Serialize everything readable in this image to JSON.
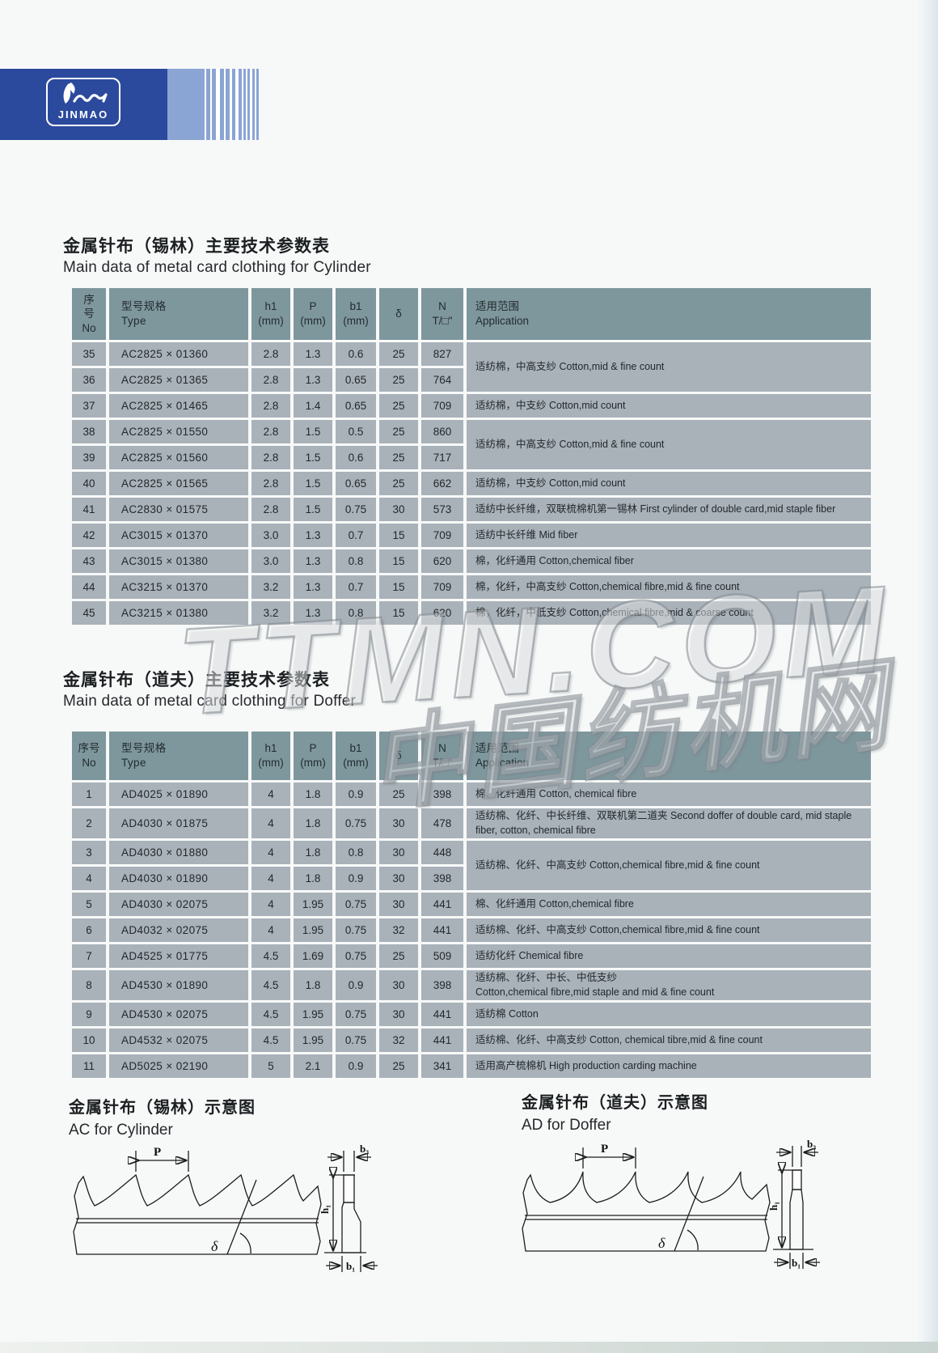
{
  "colors": {
    "banner-dark": "#2b4a9d",
    "banner-light": "#8aa4d4",
    "table-header": "#7e979d",
    "table-cell": "#a9b2b9",
    "page-bg": "#f7f9f8",
    "ink": "#23282c"
  },
  "logo": {
    "text": "JINMAO"
  },
  "watermark": {
    "line1": "TTMN.COM",
    "line2": "中国纺机网"
  },
  "cylinder_section": {
    "title_zh": "金属针布（锡林）主要技术参数表",
    "title_en": "Main data of metal card clothing for Cylinder"
  },
  "doffer_section": {
    "title_zh": "金属针布（道夫）主要技术参数表",
    "title_en": "Main data of metal card clothing for Doffer"
  },
  "cylinder_table": {
    "col_classes": [
      "no",
      "type",
      "h1",
      "p",
      "b1",
      "delta",
      "n",
      "app"
    ],
    "headers": [
      "序\n号\nNo",
      "型号规格\nType",
      "h1\n(mm)",
      "P\n(mm)",
      "b1\n(mm)",
      "δ",
      "N\nT/□\"",
      "适用范围\nApplication"
    ],
    "rows": [
      [
        "35",
        "AC2825 × 01360",
        "2.8",
        "1.3",
        "0.6",
        "25",
        "827",
        {
          "t": "适纺棉，中高支纱 Cotton,mid & fine count",
          "span": 2
        }
      ],
      [
        "36",
        "AC2825 × 01365",
        "2.8",
        "1.3",
        "0.65",
        "25",
        "764"
      ],
      [
        "37",
        "AC2825 × 01465",
        "2.8",
        "1.4",
        "0.65",
        "25",
        "709",
        {
          "t": "适纺棉，中支纱 Cotton,mid count"
        }
      ],
      [
        "38",
        "AC2825 × 01550",
        "2.8",
        "1.5",
        "0.5",
        "25",
        "860",
        {
          "t": "适纺棉，中高支纱 Cotton,mid & fine count",
          "span": 2
        }
      ],
      [
        "39",
        "AC2825 × 01560",
        "2.8",
        "1.5",
        "0.6",
        "25",
        "717"
      ],
      [
        "40",
        "AC2825 × 01565",
        "2.8",
        "1.5",
        "0.65",
        "25",
        "662",
        {
          "t": "适纺棉，中支纱 Cotton,mid count"
        }
      ],
      [
        "41",
        "AC2830 × 01575",
        "2.8",
        "1.5",
        "0.75",
        "30",
        "573",
        {
          "t": "适纺中长纤维，双联梳棉机第一锡林 First cylinder of double card,mid staple fiber"
        }
      ],
      [
        "42",
        "AC3015 × 01370",
        "3.0",
        "1.3",
        "0.7",
        "15",
        "709",
        {
          "t": "适纺中长纤维 Mid fiber"
        }
      ],
      [
        "43",
        "AC3015 × 01380",
        "3.0",
        "1.3",
        "0.8",
        "15",
        "620",
        {
          "t": "棉，化纤通用 Cotton,chemical fiber"
        }
      ],
      [
        "44",
        "AC3215 × 01370",
        "3.2",
        "1.3",
        "0.7",
        "15",
        "709",
        {
          "t": "棉，化纤，中高支纱 Cotton,chemical fibre,mid & fine count"
        }
      ],
      [
        "45",
        "AC3215 × 01380",
        "3.2",
        "1.3",
        "0.8",
        "15",
        "620",
        {
          "t": "棉，化纤，中低支纱 Cotton,chemical fibre,mid & coarse count"
        }
      ]
    ]
  },
  "doffer_table": {
    "col_classes": [
      "no",
      "type",
      "h1",
      "p",
      "b1",
      "delta",
      "n",
      "app"
    ],
    "headers": [
      "序号\nNo",
      "型号规格\nType",
      "h1\n(mm)",
      "P\n(mm)",
      "b1\n(mm)",
      "δ",
      "N\nT/□\"",
      "适用范围\nApplication"
    ],
    "rows": [
      [
        "1",
        "AD4025 × 01890",
        "4",
        "1.8",
        "0.9",
        "25",
        "398",
        {
          "t": "棉、化纤通用 Cotton, chemical fibre"
        }
      ],
      [
        "2",
        "AD4030 × 01875",
        "4",
        "1.8",
        "0.75",
        "30",
        "478",
        {
          "t": "适纺棉、化纤、中长纤维、双联机第二道夹 Second doffer of double card, mid staple fiber, cotton, chemical fibre"
        }
      ],
      [
        "3",
        "AD4030 × 01880",
        "4",
        "1.8",
        "0.8",
        "30",
        "448",
        {
          "t": "适纺棉、化纤、中高支纱 Cotton,chemical fibre,mid & fine count",
          "span": 2
        }
      ],
      [
        "4",
        "AD4030 × 01890",
        "4",
        "1.8",
        "0.9",
        "30",
        "398"
      ],
      [
        "5",
        "AD4030 × 02075",
        "4",
        "1.95",
        "0.75",
        "30",
        "441",
        {
          "t": "棉、化纤通用 Cotton,chemical fibre"
        }
      ],
      [
        "6",
        "AD4032 × 02075",
        "4",
        "1.95",
        "0.75",
        "32",
        "441",
        {
          "t": "适纺棉、化纤、中高支纱 Cotton,chemical fibre,mid & fine count"
        }
      ],
      [
        "7",
        "AD4525 × 01775",
        "4.5",
        "1.69",
        "0.75",
        "25",
        "509",
        {
          "t": "适纺化纤 Chemical fibre"
        }
      ],
      [
        "8",
        "AD4530 × 01890",
        "4.5",
        "1.8",
        "0.9",
        "30",
        "398",
        {
          "t": "适纺棉、化纤、中长、中低支纱\nCotton,chemical fibre,mid staple and mid & fine count"
        }
      ],
      [
        "9",
        "AD4530 × 02075",
        "4.5",
        "1.95",
        "0.75",
        "30",
        "441",
        {
          "t": "适纺棉 Cotton"
        }
      ],
      [
        "10",
        "AD4532 × 02075",
        "4.5",
        "1.95",
        "0.75",
        "32",
        "441",
        {
          "t": "适纺棉、化纤、中高支纱 Cotton, chemical tibre,mid & fine count"
        }
      ],
      [
        "11",
        "AD5025 × 02190",
        "5",
        "2.1",
        "0.9",
        "25",
        "341",
        {
          "t": "适用高产梳棉机 High production carding machine"
        }
      ]
    ]
  },
  "cylinder_diagram": {
    "title_zh": "金属针布（锡林）示意图",
    "title_en": "AC for Cylinder",
    "labels": {
      "p": "P",
      "delta": "δ",
      "h1": "h₁",
      "b1": "b₁",
      "b3": "b₃"
    }
  },
  "doffer_diagram": {
    "title_zh": "金属针布（道夫）示意图",
    "title_en": "AD for Doffer",
    "labels": {
      "p": "P",
      "delta": "δ",
      "h1": "h₁",
      "b1": "b₁",
      "b3": "b₃"
    }
  }
}
